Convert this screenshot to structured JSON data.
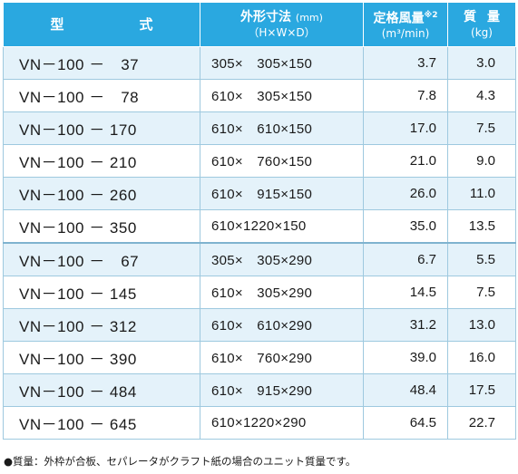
{
  "header": {
    "model": "型　式",
    "dims_main": "外形寸法",
    "dims_unit": "(mm)",
    "dims_sub": "（H×W×D）",
    "airflow_main": "定格風量",
    "airflow_mark": "※2",
    "airflow_unit": "(m³/min)",
    "mass_main": "質量",
    "mass_unit": "(kg)"
  },
  "rows": [
    {
      "model": "VN－100 －　37",
      "dims": "305×　305×150",
      "airflow": "3.7",
      "mass": "3.0"
    },
    {
      "model": "VN－100 －　78",
      "dims": "610×　305×150",
      "airflow": "7.8",
      "mass": "4.3"
    },
    {
      "model": "VN－100 － 170",
      "dims": "610×　610×150",
      "airflow": "17.0",
      "mass": "7.5"
    },
    {
      "model": "VN－100 － 210",
      "dims": "610×　760×150",
      "airflow": "21.0",
      "mass": "9.0"
    },
    {
      "model": "VN－100 － 260",
      "dims": "610×　915×150",
      "airflow": "26.0",
      "mass": "11.0"
    },
    {
      "model": "VN－100 － 350",
      "dims": "610×1220×150",
      "airflow": "35.0",
      "mass": "13.5"
    },
    {
      "model": "VN－100 －　67",
      "dims": "305×　305×290",
      "airflow": "6.7",
      "mass": "5.5"
    },
    {
      "model": "VN－100 － 145",
      "dims": "610×　305×290",
      "airflow": "14.5",
      "mass": "7.5"
    },
    {
      "model": "VN－100 － 312",
      "dims": "610×　610×290",
      "airflow": "31.2",
      "mass": "13.0"
    },
    {
      "model": "VN－100 － 390",
      "dims": "610×　760×290",
      "airflow": "39.0",
      "mass": "16.0"
    },
    {
      "model": "VN－100 － 484",
      "dims": "610×　915×290",
      "airflow": "48.4",
      "mass": "17.5"
    },
    {
      "model": "VN－100 － 645",
      "dims": "610×1220×290",
      "airflow": "64.5",
      "mass": "22.7"
    }
  ],
  "footnote": "●質量：外枠が合板、セパレータがクラフト紙の場合のユニット質量です。",
  "colors": {
    "header_bg": "#2aa8e0",
    "row_tint": "#e4f2fa"
  }
}
